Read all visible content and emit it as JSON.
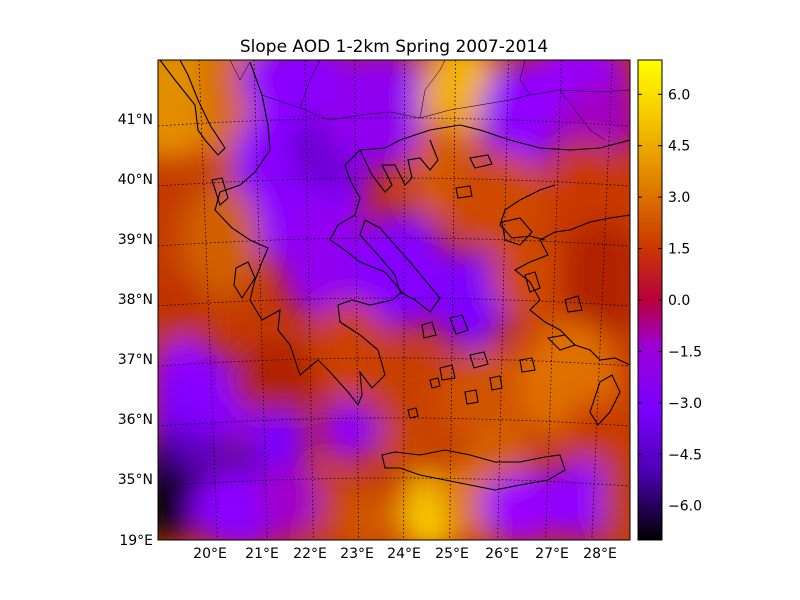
{
  "map": {
    "title": "Slope AOD 1-2km Spring 2007-2014",
    "lat_labels": [
      "41°N",
      "40°N",
      "39°N",
      "38°N",
      "37°N",
      "36°N",
      "35°N"
    ],
    "corner_label": "19°E",
    "lon_labels": [
      "20°E",
      "21°E",
      "22°E",
      "23°E",
      "24°E",
      "25°E",
      "26°E",
      "27°E",
      "28°E"
    ],
    "colorbar": {
      "tick_labels": [
        "6.0",
        "4.5",
        "3.0",
        "1.5",
        "0.0",
        "−1.5",
        "−3.0",
        "−4.5",
        "−6.0"
      ],
      "tick_values": [
        6.0,
        4.5,
        3.0,
        1.5,
        0.0,
        -1.5,
        -3.0,
        -4.5,
        -6.0
      ],
      "range": [
        -7,
        7
      ],
      "colormap": "gnuplot",
      "colors": [
        "#000000",
        "#4b00b0",
        "#7a00ff",
        "#9b00d8",
        "#b8003a",
        "#cc3d00",
        "#e28400",
        "#f5c800",
        "#ffff00"
      ]
    },
    "grid": "dotted",
    "lon_range": [
      19,
      28.5
    ],
    "lat_range": [
      34.2,
      42
    ]
  }
}
